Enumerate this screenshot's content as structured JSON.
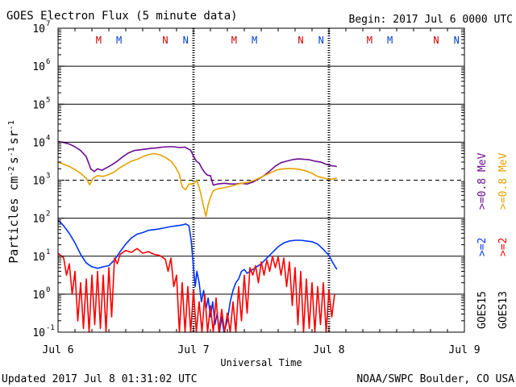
{
  "chart_data": {
    "type": "line",
    "title": "GOES Electron Flux (5 minute data)",
    "begin_label": "Begin: 2017 Jul 6 0000 UTC",
    "xlabel": "Universal Time",
    "ylabel_parts": {
      "base": "Particles cm",
      "e1": "-2",
      "s": "s",
      "e2": "-1",
      "sr": "sr",
      "e3": "-1"
    },
    "updated": "Updated 2017 Jul  8 01:31:02 UTC",
    "credit": "NOAA/SWPC Boulder, CO USA",
    "x_range_hours": [
      0,
      72
    ],
    "x_ticks": [
      {
        "hour": 0,
        "label": "Jul 6"
      },
      {
        "hour": 24,
        "label": "Jul 7"
      },
      {
        "hour": 48,
        "label": "Jul 8"
      },
      {
        "hour": 72,
        "label": "Jul 9"
      }
    ],
    "y_log_range": [
      -1,
      7
    ],
    "y_ticks": [
      {
        "exp": -1,
        "label": "-1"
      },
      {
        "exp": 0,
        "label": "0"
      },
      {
        "exp": 1,
        "label": "1"
      },
      {
        "exp": 2,
        "label": "2"
      },
      {
        "exp": 3,
        "label": "3"
      },
      {
        "exp": 4,
        "label": "4"
      },
      {
        "exp": 5,
        "label": "5"
      },
      {
        "exp": 6,
        "label": "6"
      },
      {
        "exp": 7,
        "label": "7"
      }
    ],
    "threshold_log": 3,
    "midnight_markers_hours": [
      24,
      48
    ],
    "mn_markers": [
      {
        "hour": 7.2,
        "label": "M",
        "sat": "GOES13"
      },
      {
        "hour": 10.8,
        "label": "M",
        "sat": "GOES15"
      },
      {
        "hour": 19.0,
        "label": "N",
        "sat": "GOES13"
      },
      {
        "hour": 22.6,
        "label": "N",
        "sat": "GOES15"
      },
      {
        "hour": 31.2,
        "label": "M",
        "sat": "GOES13"
      },
      {
        "hour": 34.8,
        "label": "M",
        "sat": "GOES15"
      },
      {
        "hour": 43.0,
        "label": "N",
        "sat": "GOES13"
      },
      {
        "hour": 46.6,
        "label": "N",
        "sat": "GOES15"
      },
      {
        "hour": 55.2,
        "label": "M",
        "sat": "GOES13"
      },
      {
        "hour": 58.8,
        "label": "M",
        "sat": "GOES15"
      },
      {
        "hour": 67.0,
        "label": "N",
        "sat": "GOES13"
      },
      {
        "hour": 70.6,
        "label": "N",
        "sat": "GOES15"
      }
    ],
    "right_labels": {
      "e08_purple": ">=0.8  MeV",
      "e08_orange": ">=0.8  MeV",
      "e2_blue": ">=2",
      "e2_red": ">=2",
      "goes15": "GOES15",
      "goes13": "GOES13"
    },
    "colors": {
      "purple": "#6a0d91",
      "orange": "#e6a100",
      "blue": "#0033ff",
      "red": "#ff0000",
      "mark_m": "#d00000",
      "mark_n_red": "#d00000",
      "mark_n_blue": "#0040d0"
    },
    "series": [
      {
        "name": "GOES15 >=0.8 MeV",
        "color": "#6a0d91",
        "points": [
          [
            0,
            4.02
          ],
          [
            1,
            3.99
          ],
          [
            2,
            3.95
          ],
          [
            3,
            3.88
          ],
          [
            4,
            3.78
          ],
          [
            5,
            3.62
          ],
          [
            5.8,
            3.3
          ],
          [
            6.4,
            3.23
          ],
          [
            7,
            3.3
          ],
          [
            7.8,
            3.26
          ],
          [
            8.5,
            3.32
          ],
          [
            9.5,
            3.4
          ],
          [
            10.5,
            3.5
          ],
          [
            11.5,
            3.62
          ],
          [
            12.5,
            3.72
          ],
          [
            13.5,
            3.78
          ],
          [
            14.5,
            3.8
          ],
          [
            15.5,
            3.82
          ],
          [
            16.5,
            3.84
          ],
          [
            17.5,
            3.85
          ],
          [
            18.5,
            3.87
          ],
          [
            19.5,
            3.88
          ],
          [
            20.5,
            3.88
          ],
          [
            21.5,
            3.86
          ],
          [
            22.5,
            3.87
          ],
          [
            23,
            3.83
          ],
          [
            23.5,
            3.79
          ],
          [
            24,
            3.63
          ],
          [
            24.5,
            3.5
          ],
          [
            25,
            3.45
          ],
          [
            25.5,
            3.31
          ],
          [
            26,
            3.2
          ],
          [
            26.5,
            3.13
          ],
          [
            27,
            3.12
          ],
          [
            27.5,
            2.87
          ],
          [
            28.3,
            2.9
          ],
          [
            29.5,
            2.92
          ],
          [
            30.5,
            2.9
          ],
          [
            31.5,
            2.9
          ],
          [
            32.5,
            2.92
          ],
          [
            33.5,
            2.9
          ],
          [
            34.5,
            2.95
          ],
          [
            35.5,
            3.03
          ],
          [
            36.5,
            3.12
          ],
          [
            37.5,
            3.24
          ],
          [
            38.5,
            3.37
          ],
          [
            39.5,
            3.46
          ],
          [
            40.5,
            3.5
          ],
          [
            41.5,
            3.54
          ],
          [
            42.5,
            3.56
          ],
          [
            43.5,
            3.55
          ],
          [
            44.5,
            3.54
          ],
          [
            45.5,
            3.5
          ],
          [
            46.5,
            3.48
          ],
          [
            47.5,
            3.42
          ],
          [
            48.5,
            3.38
          ],
          [
            49.4,
            3.36
          ]
        ]
      },
      {
        "name": "GOES13 >=0.8 MeV",
        "color": "#e6a100",
        "points": [
          [
            0,
            3.48
          ],
          [
            1,
            3.42
          ],
          [
            2,
            3.36
          ],
          [
            3,
            3.28
          ],
          [
            4,
            3.18
          ],
          [
            5,
            3.05
          ],
          [
            5.6,
            2.88
          ],
          [
            6.2,
            3.05
          ],
          [
            7,
            3.12
          ],
          [
            8,
            3.1
          ],
          [
            9,
            3.15
          ],
          [
            10,
            3.22
          ],
          [
            11,
            3.33
          ],
          [
            12,
            3.42
          ],
          [
            13,
            3.5
          ],
          [
            14,
            3.55
          ],
          [
            15,
            3.62
          ],
          [
            16,
            3.67
          ],
          [
            17,
            3.7
          ],
          [
            18,
            3.67
          ],
          [
            19,
            3.6
          ],
          [
            20,
            3.5
          ],
          [
            20.8,
            3.35
          ],
          [
            21.5,
            3.15
          ],
          [
            22,
            2.82
          ],
          [
            22.6,
            2.75
          ],
          [
            23.2,
            2.9
          ],
          [
            24,
            2.9
          ],
          [
            24.6,
            3.0
          ],
          [
            25.2,
            2.7
          ],
          [
            25.8,
            2.3
          ],
          [
            26.2,
            2.05
          ],
          [
            26.6,
            2.35
          ],
          [
            27,
            2.55
          ],
          [
            27.5,
            2.72
          ],
          [
            28,
            2.76
          ],
          [
            29,
            2.79
          ],
          [
            30,
            2.82
          ],
          [
            31,
            2.86
          ],
          [
            32,
            2.9
          ],
          [
            33,
            2.93
          ],
          [
            34,
            2.96
          ],
          [
            35,
            3.01
          ],
          [
            36,
            3.08
          ],
          [
            37,
            3.15
          ],
          [
            38,
            3.22
          ],
          [
            39,
            3.28
          ],
          [
            40,
            3.3
          ],
          [
            41,
            3.31
          ],
          [
            42,
            3.3
          ],
          [
            43,
            3.28
          ],
          [
            44,
            3.24
          ],
          [
            45,
            3.18
          ],
          [
            46,
            3.1
          ],
          [
            47,
            3.06
          ],
          [
            48,
            3.02
          ],
          [
            48.7,
            3.03
          ],
          [
            49.4,
            3.06
          ]
        ]
      },
      {
        "name": "GOES15 >=2 MeV",
        "color": "#0033ff",
        "points": [
          [
            0,
            1.95
          ],
          [
            1,
            1.8
          ],
          [
            2,
            1.6
          ],
          [
            3,
            1.35
          ],
          [
            4,
            1.05
          ],
          [
            5,
            0.82
          ],
          [
            6,
            0.72
          ],
          [
            7,
            0.68
          ],
          [
            8,
            0.72
          ],
          [
            9,
            0.75
          ],
          [
            10,
            0.9
          ],
          [
            11,
            1.12
          ],
          [
            12,
            1.32
          ],
          [
            13,
            1.48
          ],
          [
            14,
            1.58
          ],
          [
            15,
            1.62
          ],
          [
            16,
            1.68
          ],
          [
            17,
            1.7
          ],
          [
            18,
            1.72
          ],
          [
            19,
            1.75
          ],
          [
            20,
            1.78
          ],
          [
            21,
            1.8
          ],
          [
            22,
            1.82
          ],
          [
            22.6,
            1.85
          ],
          [
            23.2,
            1.8
          ],
          [
            23.6,
            1.4
          ],
          [
            24,
            0.7
          ],
          [
            24.3,
            0.2
          ],
          [
            24.6,
            0.6
          ],
          [
            25,
            0.3
          ],
          [
            25.4,
            -0.2
          ],
          [
            25.8,
            0.1
          ],
          [
            26.2,
            -0.4
          ],
          [
            26.6,
            -0.1
          ],
          [
            27,
            -0.6
          ],
          [
            27.4,
            -0.2
          ],
          [
            27.8,
            -0.8
          ],
          [
            28.2,
            -0.5
          ],
          [
            28.6,
            -1.0
          ],
          [
            29,
            -0.6
          ],
          [
            29.4,
            -1.0
          ],
          [
            30,
            -0.7
          ],
          [
            30.5,
            -0.2
          ],
          [
            31,
            0.1
          ],
          [
            31.5,
            0.3
          ],
          [
            32,
            0.4
          ],
          [
            32.5,
            0.6
          ],
          [
            33,
            0.65
          ],
          [
            33.5,
            0.55
          ],
          [
            34,
            0.6
          ],
          [
            35,
            0.7
          ],
          [
            36,
            0.8
          ],
          [
            37,
            0.95
          ],
          [
            38,
            1.1
          ],
          [
            39,
            1.25
          ],
          [
            40,
            1.35
          ],
          [
            41,
            1.4
          ],
          [
            42,
            1.42
          ],
          [
            43,
            1.42
          ],
          [
            44,
            1.4
          ],
          [
            45,
            1.38
          ],
          [
            46,
            1.32
          ],
          [
            47,
            1.18
          ],
          [
            48,
            1.02
          ],
          [
            48.6,
            0.85
          ],
          [
            49.0,
            0.75
          ],
          [
            49.4,
            0.65
          ]
        ]
      },
      {
        "name": "GOES13 >=2 MeV",
        "color": "#ff0000",
        "points": [
          [
            0,
            1.08
          ],
          [
            1,
            0.95
          ],
          [
            1.5,
            0.5
          ],
          [
            2,
            0.8
          ],
          [
            2.5,
            0.0
          ],
          [
            3,
            0.6
          ],
          [
            3.5,
            -0.7
          ],
          [
            4,
            0.3
          ],
          [
            4.5,
            -0.9
          ],
          [
            5,
            0.4
          ],
          [
            5.5,
            -1.0
          ],
          [
            6,
            0.5
          ],
          [
            6.5,
            -0.8
          ],
          [
            7,
            0.6
          ],
          [
            7.5,
            -0.9
          ],
          [
            8,
            0.5
          ],
          [
            8.5,
            -1.0
          ],
          [
            9,
            0.7
          ],
          [
            9.5,
            -0.6
          ],
          [
            10,
            0.95
          ],
          [
            10.5,
            0.8
          ],
          [
            11,
            1.05
          ],
          [
            12,
            1.15
          ],
          [
            13,
            1.1
          ],
          [
            14,
            1.2
          ],
          [
            15,
            1.08
          ],
          [
            16,
            1.12
          ],
          [
            17,
            1.05
          ],
          [
            18,
            1.02
          ],
          [
            19,
            0.92
          ],
          [
            19.5,
            0.6
          ],
          [
            20,
            0.95
          ],
          [
            20.5,
            0.2
          ],
          [
            21,
            0.5
          ],
          [
            21.5,
            -1.0
          ],
          [
            22,
            0.3
          ],
          [
            22.5,
            -1.0
          ],
          [
            23,
            0.2
          ],
          [
            23.5,
            -1.0
          ],
          [
            24,
            0.1
          ],
          [
            24.5,
            -1.0
          ],
          [
            25,
            -0.2
          ],
          [
            25.5,
            -1.0
          ],
          [
            26,
            0.0
          ],
          [
            26.5,
            -1.0
          ],
          [
            27,
            -0.3
          ],
          [
            27.5,
            -1.0
          ],
          [
            28,
            -0.1
          ],
          [
            28.5,
            -1.0
          ],
          [
            29,
            -0.4
          ],
          [
            29.5,
            -1.0
          ],
          [
            30,
            -0.5
          ],
          [
            30.5,
            -1.0
          ],
          [
            31,
            -0.2
          ],
          [
            31.5,
            -1.0
          ],
          [
            32,
            0.2
          ],
          [
            32.5,
            -0.7
          ],
          [
            33,
            0.5
          ],
          [
            33.5,
            -0.5
          ],
          [
            34,
            0.7
          ],
          [
            34.5,
            0.5
          ],
          [
            35,
            0.75
          ],
          [
            35.5,
            0.3
          ],
          [
            36,
            0.85
          ],
          [
            36.5,
            0.5
          ],
          [
            37,
            0.9
          ],
          [
            37.5,
            0.6
          ],
          [
            38,
            1.0
          ],
          [
            38.5,
            0.7
          ],
          [
            39,
            0.98
          ],
          [
            39.5,
            0.5
          ],
          [
            40,
            0.95
          ],
          [
            40.5,
            0.2
          ],
          [
            41,
            0.85
          ],
          [
            41.5,
            -0.3
          ],
          [
            42,
            0.7
          ],
          [
            42.5,
            -0.8
          ],
          [
            43,
            0.6
          ],
          [
            43.5,
            -1.0
          ],
          [
            44,
            0.4
          ],
          [
            44.5,
            -0.9
          ],
          [
            45,
            0.3
          ],
          [
            45.5,
            -1.0
          ],
          [
            46,
            0.2
          ],
          [
            46.5,
            -0.8
          ],
          [
            47,
            0.3
          ],
          [
            47.5,
            -1.0
          ],
          [
            48,
            0.1
          ],
          [
            48.5,
            -0.6
          ],
          [
            49,
            0.0
          ]
        ]
      }
    ]
  }
}
